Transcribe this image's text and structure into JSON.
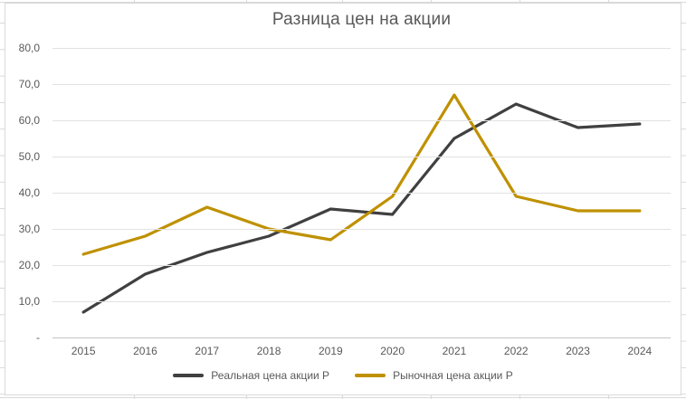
{
  "chart_data": {
    "type": "line",
    "title": "Разница цен на акции",
    "xlabel": "",
    "ylabel": "",
    "categories": [
      "2015",
      "2016",
      "2017",
      "2018",
      "2019",
      "2020",
      "2021",
      "2022",
      "2023",
      "2024"
    ],
    "series": [
      {
        "name": "Реальная цена акции Р",
        "color": "#404040",
        "values": [
          7,
          17.5,
          23.5,
          28,
          35.5,
          34,
          55,
          64.5,
          58,
          59
        ]
      },
      {
        "name": "Рыночная цена акции Р",
        "color": "#BF9000",
        "values": [
          23,
          28,
          36,
          30,
          27,
          39,
          67,
          39,
          35,
          35
        ]
      }
    ],
    "ylim": [
      0,
      80
    ],
    "yticks": [
      {
        "value": 0,
        "label": "-"
      },
      {
        "value": 10,
        "label": "10,0"
      },
      {
        "value": 20,
        "label": "20,0"
      },
      {
        "value": 30,
        "label": "30,0"
      },
      {
        "value": 40,
        "label": "40,0"
      },
      {
        "value": 50,
        "label": "50,0"
      },
      {
        "value": 60,
        "label": "60,0"
      },
      {
        "value": 70,
        "label": "70,0"
      },
      {
        "value": 80,
        "label": "80,0"
      }
    ],
    "grid": true,
    "legend_position": "bottom",
    "colors": {
      "title_text": "#595959",
      "axis_text": "#595959",
      "gridline": "#E2E2E2",
      "axis_line": "#C6C6C6",
      "chart_border": "#D9D9D9"
    }
  }
}
